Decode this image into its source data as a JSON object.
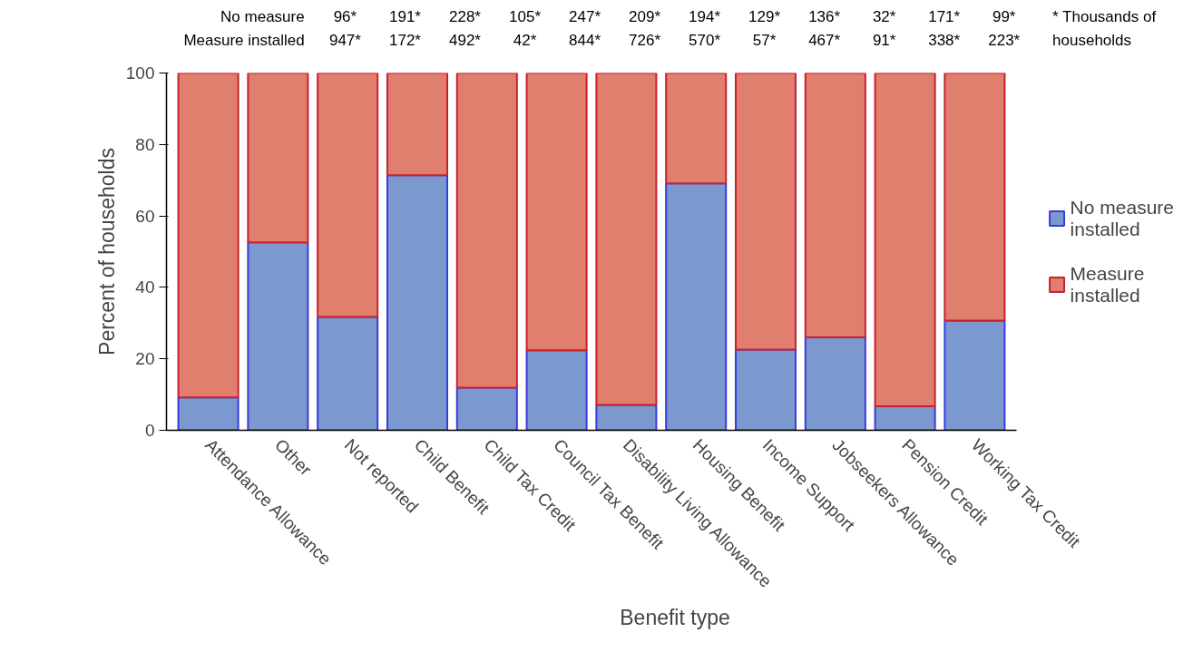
{
  "chart_data": {
    "type": "bar",
    "stacked": true,
    "xlabel": "Benefit type",
    "ylabel": "Percent of households",
    "categories": [
      "Attendance Allowance",
      "Other",
      "Not reported",
      "Child Benefit",
      "Child Tax Credit",
      "Council Tax Benefit",
      "Disability Living Allowance",
      "Housing Benefit",
      "Income Support",
      "Jobseekers Allowance",
      "Pension Credit",
      "Working Tax Credit"
    ],
    "series": [
      {
        "name": "No measure installed",
        "color": "#7b98cf",
        "values": [
          9.2,
          52.6,
          31.7,
          71.4,
          11.9,
          22.4,
          7.1,
          69.1,
          22.6,
          26.0,
          6.7,
          30.7
        ]
      },
      {
        "name": "Measure installed",
        "color": "#e07f6e",
        "values": [
          90.8,
          47.4,
          68.3,
          28.6,
          88.1,
          77.6,
          92.9,
          30.9,
          77.4,
          74.0,
          93.3,
          69.3
        ]
      }
    ],
    "annotations": [
      "No measure\nMeasure installed",
      "96*\n947*",
      "191*\n172*",
      "228*\n492*",
      "105*\n42*",
      "247*\n844*",
      "209*\n726*",
      "194*\n570*",
      "129*\n57*",
      "136*\n467*",
      "32*\n91*",
      "171*\n338*",
      "99*\n223*",
      "* Thousands of\nhouseholds"
    ],
    "ylim": [
      0,
      100
    ],
    "yticks": [
      0,
      20,
      40,
      60,
      80,
      100
    ],
    "grid": false,
    "legend": "right"
  }
}
